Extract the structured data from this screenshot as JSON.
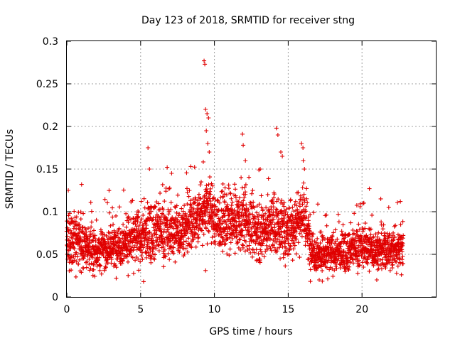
{
  "chart_data": {
    "type": "scatter",
    "title": "Day 123 of 2018, SRMTID for receiver stng",
    "xlabel": "GPS time / hours",
    "ylabel": "SRMTID / TECUs",
    "xlim": [
      0,
      25
    ],
    "ylim": [
      0,
      0.3
    ],
    "xticks": [
      0,
      5,
      10,
      15,
      20
    ],
    "xtick_labels": [
      "0",
      "5",
      "10",
      "15",
      "20"
    ],
    "yticks": [
      0,
      0.05,
      0.1,
      0.15,
      0.2,
      0.25,
      0.3
    ],
    "ytick_labels": [
      "0",
      "0.05",
      "0.1",
      "0.15",
      "0.2",
      "0.25",
      "0.3"
    ],
    "grid": true,
    "marker": "+",
    "color": "#e00000",
    "series": [
      {
        "name": "SRMTID",
        "note": "Dense scatter of '+' markers from 0 to ~22.8 h; mean envelope and outlier peaks read from chart",
        "time_range": [
          0,
          22.8
        ],
        "envelope": [
          {
            "x": 0.0,
            "mean": 0.065,
            "spread": 0.03
          },
          {
            "x": 0.5,
            "mean": 0.07,
            "spread": 0.03
          },
          {
            "x": 1.0,
            "mean": 0.062,
            "spread": 0.025
          },
          {
            "x": 2.0,
            "mean": 0.055,
            "spread": 0.022
          },
          {
            "x": 3.0,
            "mean": 0.058,
            "spread": 0.022
          },
          {
            "x": 4.0,
            "mean": 0.065,
            "spread": 0.025
          },
          {
            "x": 5.0,
            "mean": 0.07,
            "spread": 0.03
          },
          {
            "x": 6.0,
            "mean": 0.08,
            "spread": 0.03
          },
          {
            "x": 7.0,
            "mean": 0.075,
            "spread": 0.028
          },
          {
            "x": 8.0,
            "mean": 0.08,
            "spread": 0.03
          },
          {
            "x": 9.0,
            "mean": 0.095,
            "spread": 0.03
          },
          {
            "x": 9.5,
            "mean": 0.11,
            "spread": 0.035
          },
          {
            "x": 10.0,
            "mean": 0.09,
            "spread": 0.03
          },
          {
            "x": 11.0,
            "mean": 0.085,
            "spread": 0.03
          },
          {
            "x": 12.0,
            "mean": 0.09,
            "spread": 0.032
          },
          {
            "x": 13.0,
            "mean": 0.075,
            "spread": 0.028
          },
          {
            "x": 14.0,
            "mean": 0.085,
            "spread": 0.032
          },
          {
            "x": 15.0,
            "mean": 0.075,
            "spread": 0.028
          },
          {
            "x": 16.0,
            "mean": 0.1,
            "spread": 0.035
          },
          {
            "x": 16.5,
            "mean": 0.06,
            "spread": 0.025
          },
          {
            "x": 17.0,
            "mean": 0.05,
            "spread": 0.02
          },
          {
            "x": 18.0,
            "mean": 0.05,
            "spread": 0.02
          },
          {
            "x": 19.0,
            "mean": 0.055,
            "spread": 0.02
          },
          {
            "x": 20.0,
            "mean": 0.06,
            "spread": 0.022
          },
          {
            "x": 21.0,
            "mean": 0.055,
            "spread": 0.022
          },
          {
            "x": 22.0,
            "mean": 0.055,
            "spread": 0.022
          },
          {
            "x": 22.8,
            "mean": 0.06,
            "spread": 0.025
          }
        ],
        "peaks": [
          {
            "x": 0.1,
            "y": 0.125
          },
          {
            "x": 1.0,
            "y": 0.132
          },
          {
            "x": 5.5,
            "y": 0.175
          },
          {
            "x": 5.6,
            "y": 0.15
          },
          {
            "x": 6.8,
            "y": 0.152
          },
          {
            "x": 7.1,
            "y": 0.145
          },
          {
            "x": 8.4,
            "y": 0.153
          },
          {
            "x": 9.3,
            "y": 0.277
          },
          {
            "x": 9.35,
            "y": 0.273
          },
          {
            "x": 9.4,
            "y": 0.22
          },
          {
            "x": 9.5,
            "y": 0.215
          },
          {
            "x": 9.6,
            "y": 0.21
          },
          {
            "x": 9.45,
            "y": 0.195
          },
          {
            "x": 9.55,
            "y": 0.18
          },
          {
            "x": 9.65,
            "y": 0.17
          },
          {
            "x": 11.9,
            "y": 0.191
          },
          {
            "x": 11.95,
            "y": 0.178
          },
          {
            "x": 12.1,
            "y": 0.16
          },
          {
            "x": 13.1,
            "y": 0.15
          },
          {
            "x": 14.2,
            "y": 0.198
          },
          {
            "x": 14.3,
            "y": 0.19
          },
          {
            "x": 14.5,
            "y": 0.17
          },
          {
            "x": 14.6,
            "y": 0.165
          },
          {
            "x": 15.9,
            "y": 0.18
          },
          {
            "x": 16.0,
            "y": 0.175
          },
          {
            "x": 16.1,
            "y": 0.15
          },
          {
            "x": 20.5,
            "y": 0.127
          },
          {
            "x": 22.6,
            "y": 0.112
          },
          {
            "x": 9.4,
            "y": 0.031
          },
          {
            "x": 5.2,
            "y": 0.018
          },
          {
            "x": 17.1,
            "y": 0.02
          },
          {
            "x": 21.0,
            "y": 0.02
          }
        ],
        "approx_point_count": 3000,
        "point_interval_hours": 0.0076
      }
    ]
  }
}
